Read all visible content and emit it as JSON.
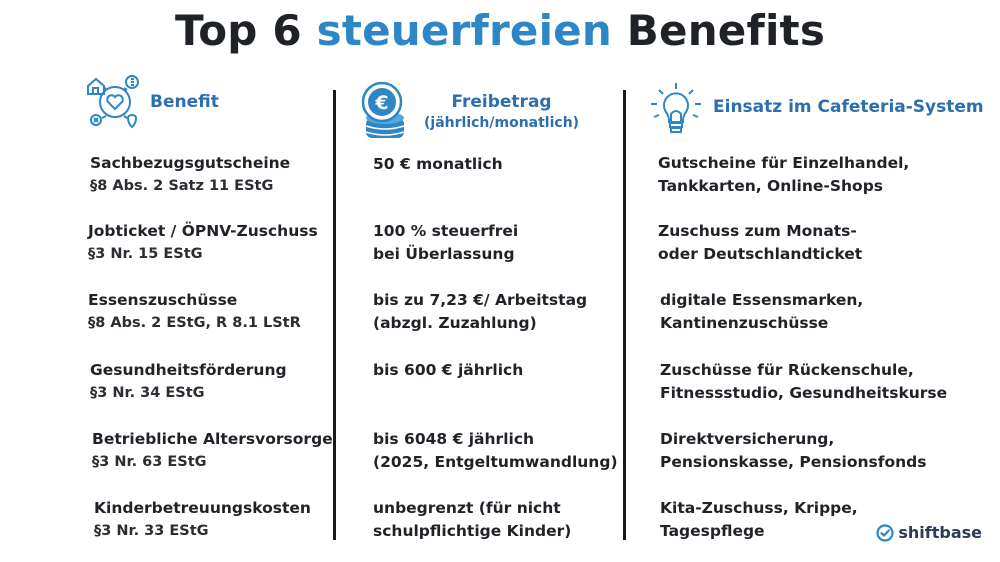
{
  "title": {
    "part1": "Top 6 ",
    "accent": "steuerfreien",
    "part2": " Benefits"
  },
  "columns": {
    "benefit": {
      "label": "Benefit",
      "icon": "heart-benefits-icon"
    },
    "freibetrag": {
      "label": "Freibetrag",
      "sub": "(jährlich/monatlich)",
      "icon": "euro-coins-icon"
    },
    "einsatz": {
      "label": "Einsatz im Cafeteria-System",
      "icon": "lightbulb-icon"
    }
  },
  "rows": [
    {
      "benefit": "Sachbezugsgutscheine",
      "law": "§8 Abs. 2 Satz 11 EStG",
      "amount1": "50 € monatlich",
      "amount2": "",
      "use1": "Gutscheine für Einzelhandel,",
      "use2": "Tankkarten, Online-Shops"
    },
    {
      "benefit": "Jobticket / ÖPNV-Zuschuss",
      "law": "§3 Nr. 15 EStG",
      "amount1": "100 % steuerfrei",
      "amount2": "bei Überlassung",
      "use1": "Zuschuss zum Monats-",
      "use2": "oder Deutschlandticket"
    },
    {
      "benefit": "Essenszuschüsse",
      "law": "§8 Abs. 2 EStG, R 8.1 LStR",
      "amount1": "bis zu 7,23 €/ Arbeitstag",
      "amount2": "(abzgl. Zuzahlung)",
      "use1": "digitale Essensmarken,",
      "use2": "Kantinenzuschüsse"
    },
    {
      "benefit": "Gesundheitsförderung",
      "law": "§3 Nr. 34 EStG",
      "amount1": "bis 600 € jährlich",
      "amount2": "",
      "use1": "Zuschüsse für Rückenschule,",
      "use2": "Fitnessstudio, Gesundheitskurse"
    },
    {
      "benefit": "Betriebliche Altersvorsorge",
      "law": "§3 Nr. 63 EStG",
      "amount1": "bis 6048 € jährlich",
      "amount2": "(2025, Entgeltumwandlung)",
      "use1": "Direktversicherung,",
      "use2": "Pensionskasse, Pensionsfonds"
    },
    {
      "benefit": "Kinderbetreuungskosten",
      "law": "§3 Nr. 33 EStG",
      "amount1": "unbegrenzt (für nicht",
      "amount2": "schulpflichtige Kinder)",
      "use1": "Kita-Zuschuss, Krippe,",
      "use2": "Tagespflege"
    }
  ],
  "brand": {
    "name": "shiftbase",
    "icon": "shiftbase-check-icon"
  },
  "colors": {
    "accent": "#2d86c6",
    "header": "#2d6fae",
    "text": "#1f2328"
  }
}
